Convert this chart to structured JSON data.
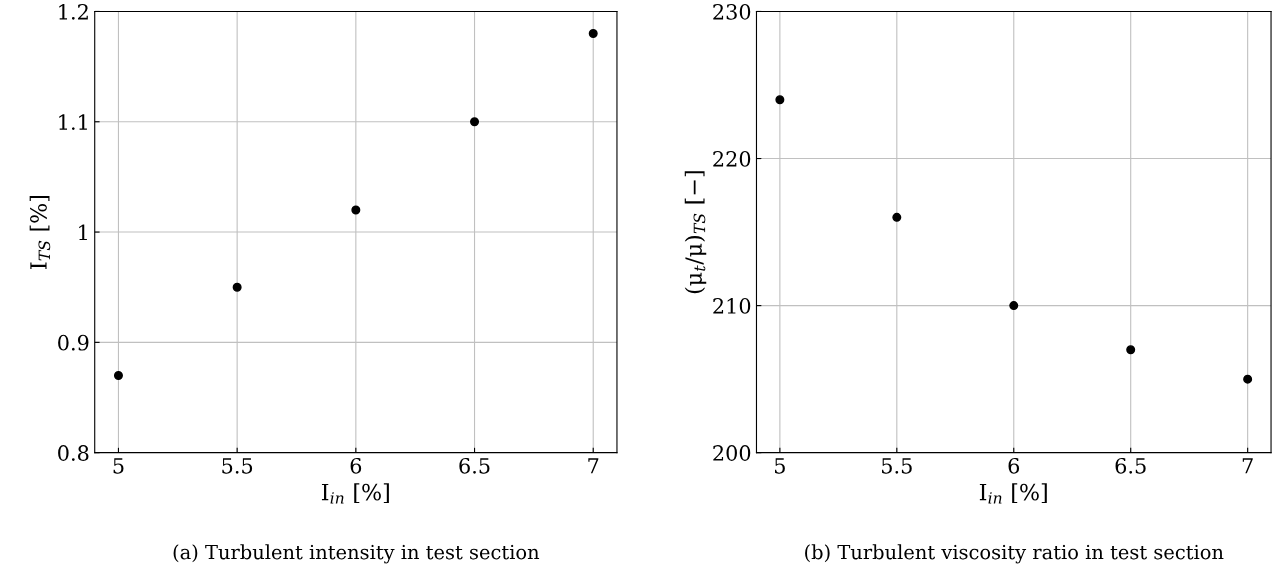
{
  "chart_data": [
    {
      "type": "scatter",
      "xlabel": "I$_{in}$ [%]",
      "ylabel": "I$_{TS}$ [%]",
      "x": [
        5,
        5.5,
        6,
        6.5,
        7
      ],
      "series": [
        {
          "color": "#000000",
          "values": [
            0.87,
            0.95,
            1.02,
            1.1,
            1.18
          ]
        }
      ],
      "xlim": [
        4.9,
        7.1
      ],
      "xticks": [
        5,
        5.5,
        6,
        6.5,
        7
      ],
      "ylim": [
        0.8,
        1.2
      ],
      "yticks": [
        0.8,
        0.9,
        1,
        1.1,
        1.2
      ],
      "grid": true,
      "marker": "circle",
      "annotations": [
        "(a) Turbulent intensity in test section"
      ]
    },
    {
      "type": "scatter",
      "xlabel": "I$_{in}$ [%]",
      "ylabel": "(μ$_{t}$/μ)$_{TS}$ [−]",
      "x": [
        5,
        5.5,
        6,
        6.5,
        7
      ],
      "series": [
        {
          "color": "#000000",
          "values": [
            224,
            216,
            210,
            207,
            205
          ]
        }
      ],
      "xlim": [
        4.9,
        7.1
      ],
      "xticks": [
        5,
        5.5,
        6,
        6.5,
        7
      ],
      "ylim": [
        200,
        230
      ],
      "yticks": [
        200,
        210,
        220,
        230
      ],
      "grid": true,
      "marker": "circle",
      "annotations": [
        "(b) Turbulent viscosity ratio in test section"
      ]
    }
  ]
}
